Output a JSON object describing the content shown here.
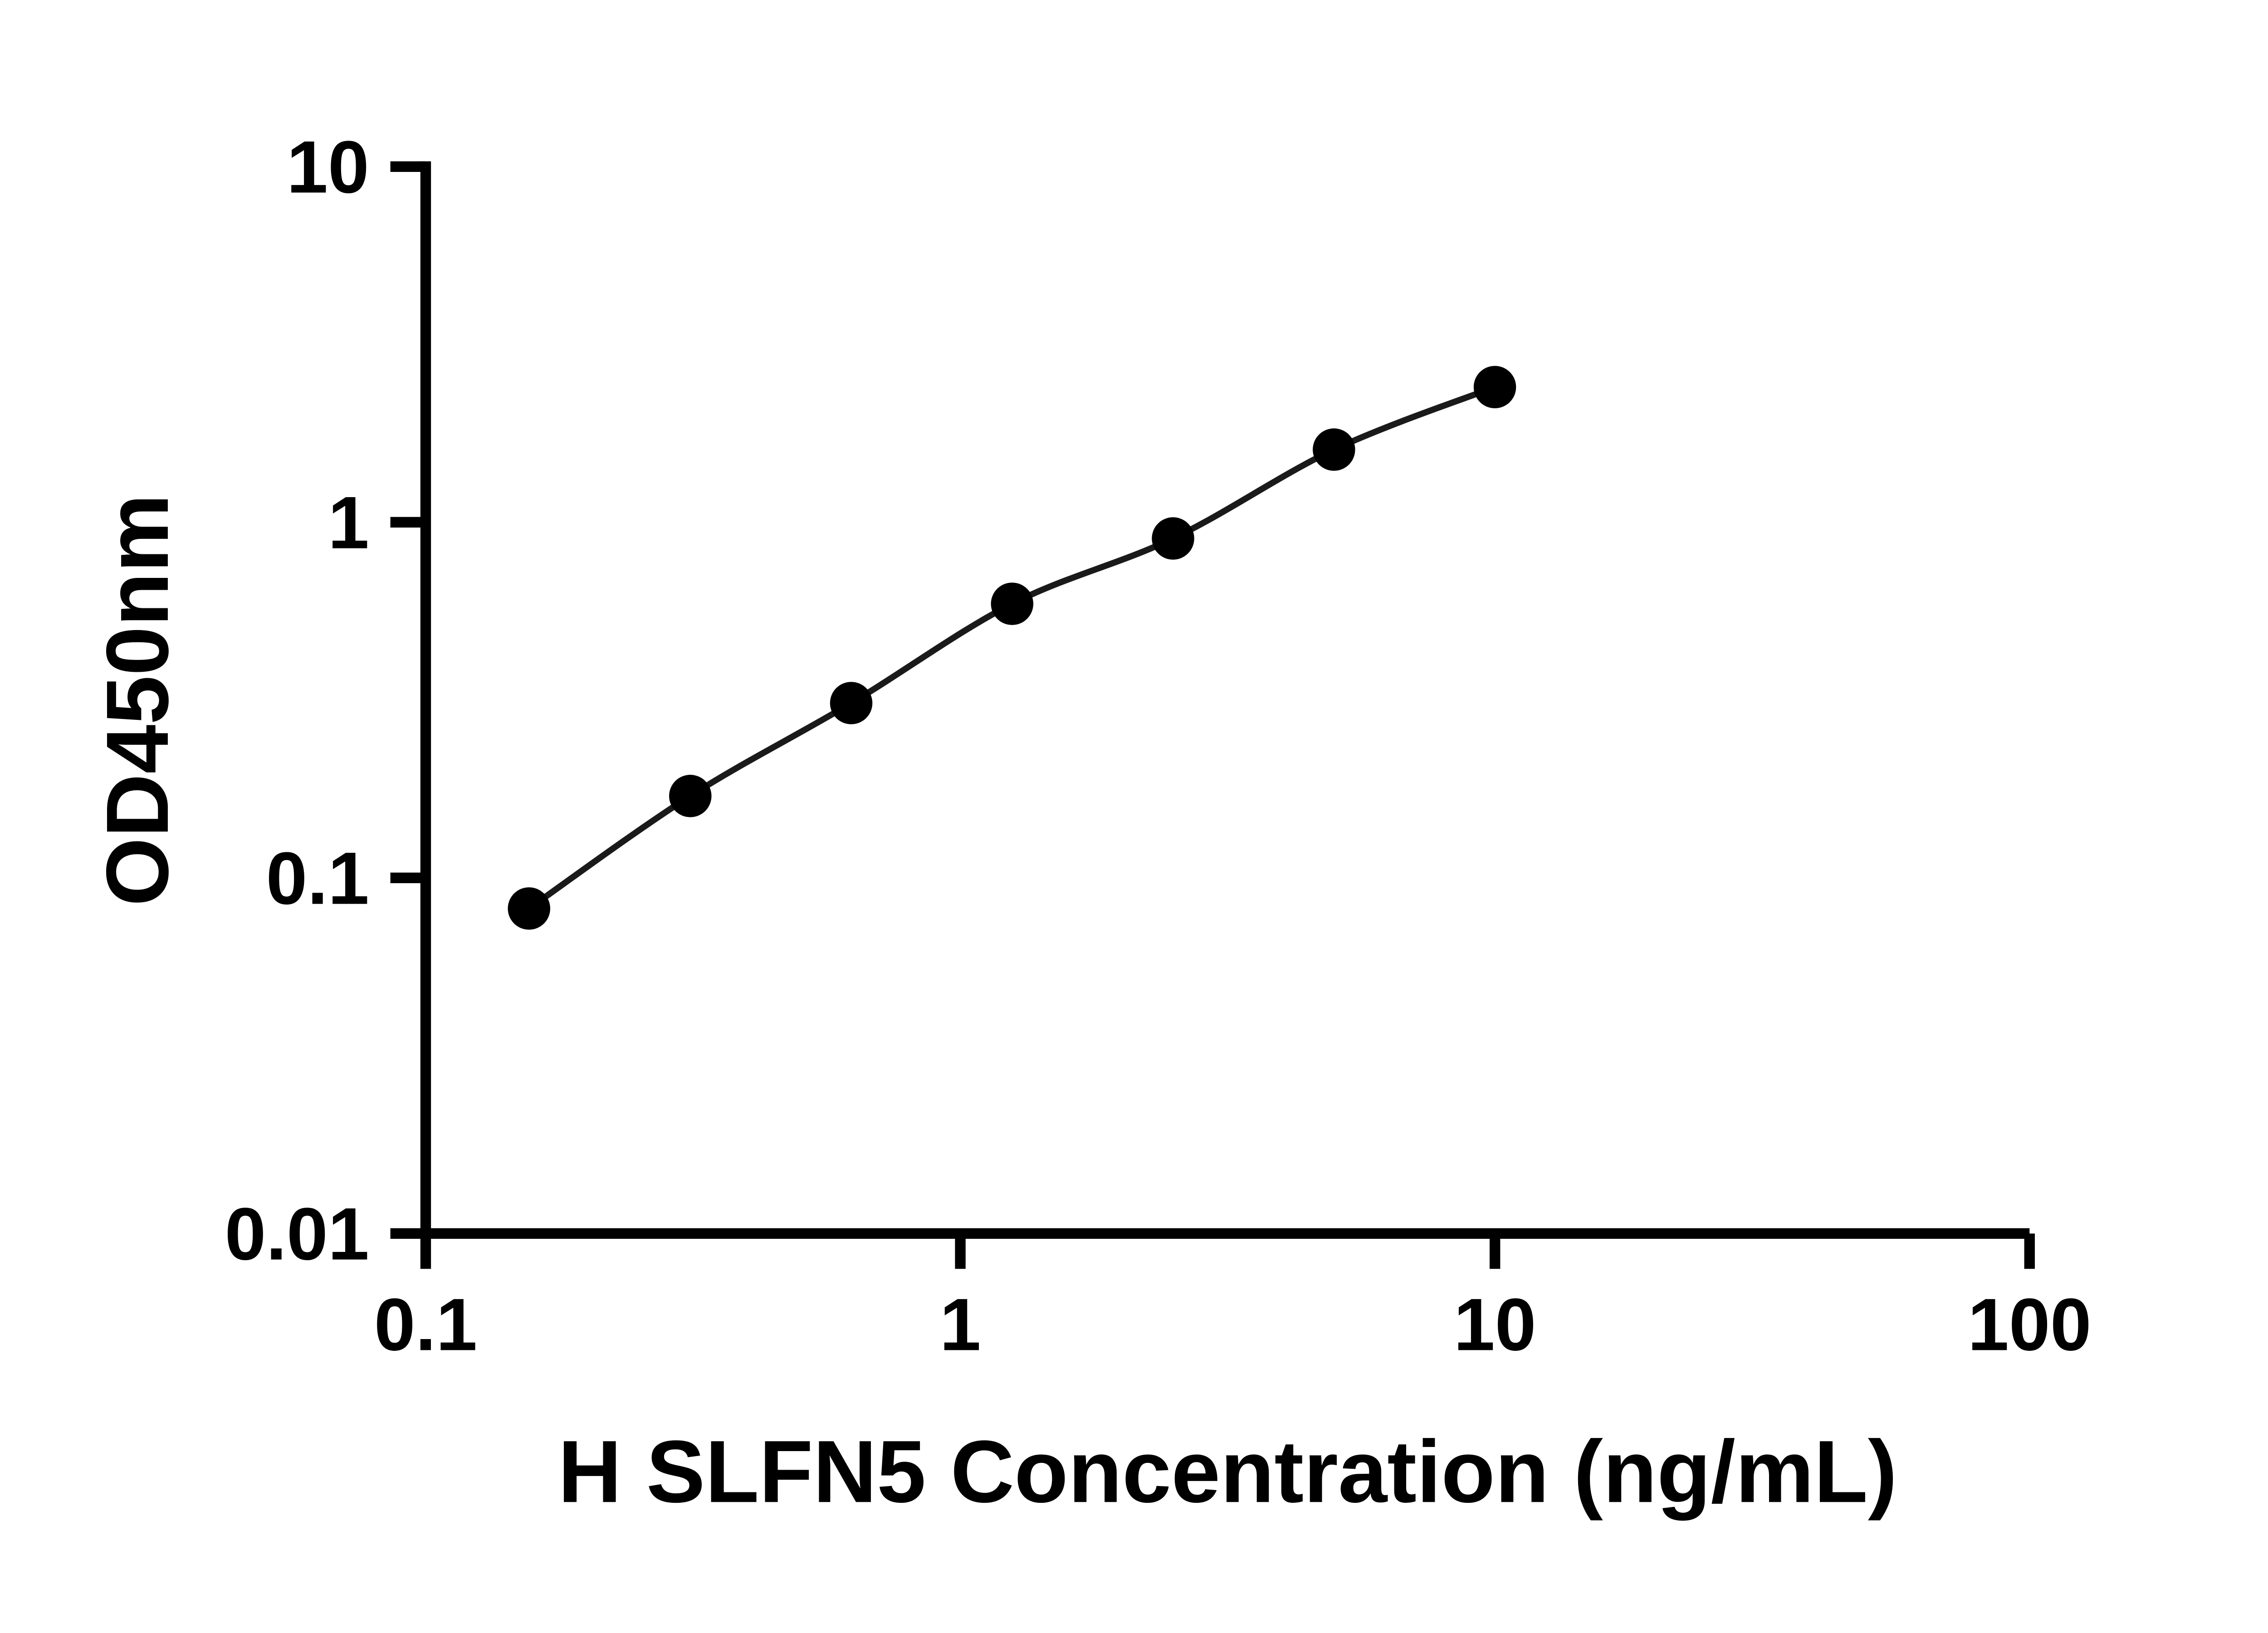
{
  "page": {
    "background_color": "#ffffff"
  },
  "chart_data": {
    "type": "scatter",
    "xlabel": "H SLFN5 Concentration (ng/mL)",
    "ylabel": "OD450nm",
    "x_scale": "log10",
    "y_scale": "log10",
    "xlim": [
      0.1,
      100
    ],
    "ylim": [
      0.01,
      10
    ],
    "x_ticks": [
      0.1,
      1,
      10,
      100
    ],
    "x_tick_labels": [
      "0.1",
      "1",
      "10",
      "100"
    ],
    "y_ticks": [
      10,
      1,
      0.1,
      0.01
    ],
    "y_tick_labels": [
      "10",
      "1",
      "0.1",
      "0.01"
    ],
    "grid": false,
    "legend": false,
    "axis_color": "#000000",
    "series": [
      {
        "marker": "circle",
        "marker_color": "#000000",
        "line_color": "#1a1a1a",
        "points": [
          {
            "x": 0.156,
            "y": 0.082
          },
          {
            "x": 0.3125,
            "y": 0.17
          },
          {
            "x": 0.625,
            "y": 0.31
          },
          {
            "x": 1.25,
            "y": 0.59
          },
          {
            "x": 2.5,
            "y": 0.9
          },
          {
            "x": 5,
            "y": 1.6
          },
          {
            "x": 10,
            "y": 2.4
          }
        ]
      }
    ]
  }
}
